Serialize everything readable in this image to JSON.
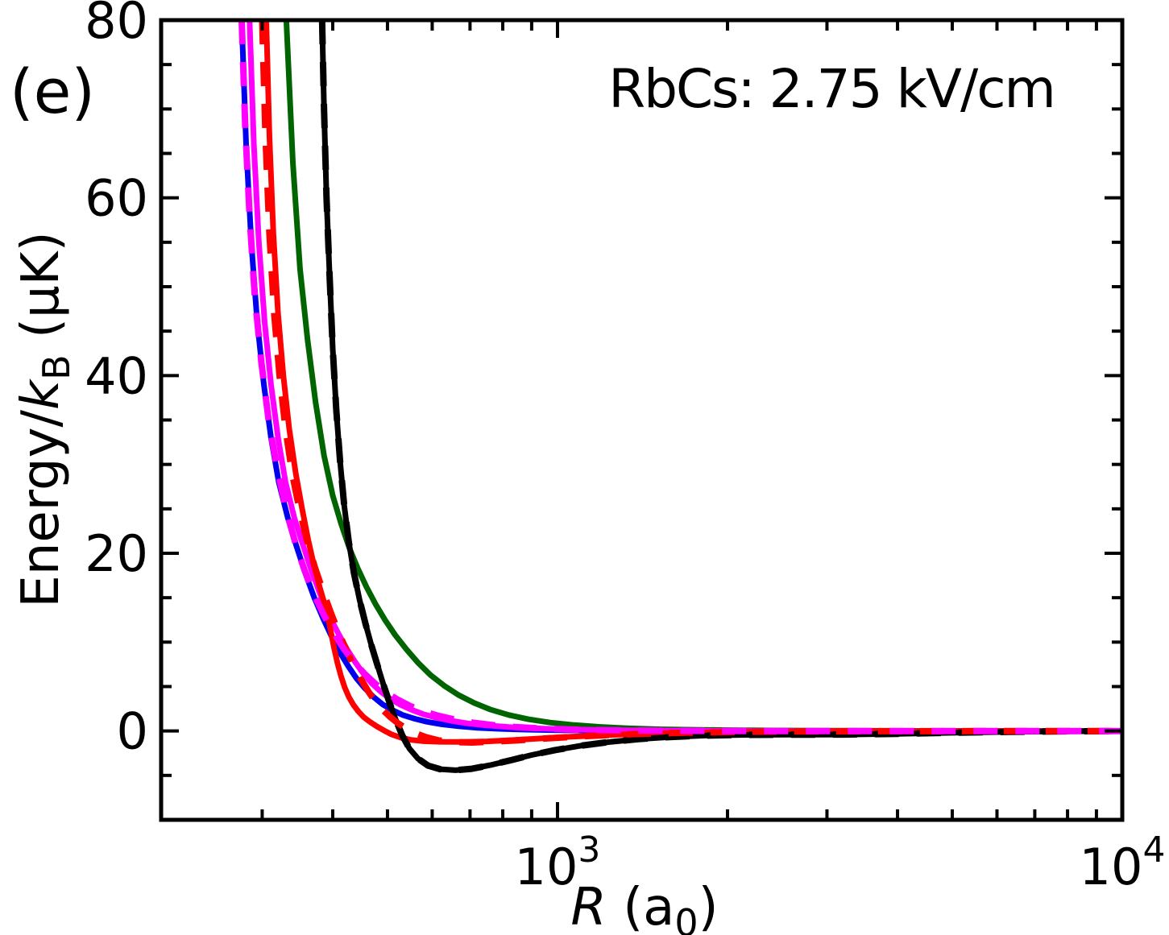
{
  "panel_label": "(e)",
  "annotation": "RbCs: 2.75 kV/cm",
  "axes": {
    "x": {
      "label_r": "R",
      "label_suffix": " (a",
      "label_sub": "0",
      "label_close": ")",
      "scale": "log",
      "min": 198.7,
      "max": 10000,
      "major_ticks": [
        {
          "value": 1000,
          "base": "10",
          "exp": "3"
        },
        {
          "value": 10000,
          "base": "10",
          "exp": "4"
        }
      ],
      "minor_ticks": [
        300,
        400,
        500,
        600,
        700,
        800,
        900,
        2000,
        3000,
        4000,
        5000,
        6000,
        7000,
        8000,
        9000
      ]
    },
    "y": {
      "label_prefix": "Energy/",
      "label_k": "k",
      "label_sub": "B",
      "label_suffix": " (μK)",
      "scale": "linear",
      "min": -10,
      "max": 80,
      "major_ticks": [
        {
          "value": 80,
          "label": "80"
        },
        {
          "value": 60,
          "label": "60"
        },
        {
          "value": 40,
          "label": "40"
        },
        {
          "value": 20,
          "label": "20"
        },
        {
          "value": 0,
          "label": "0"
        }
      ],
      "minor_ticks": [
        75,
        70,
        65,
        55,
        50,
        45,
        35,
        30,
        25,
        15,
        10,
        5,
        -5
      ]
    }
  },
  "chart_data": {
    "type": "line",
    "title": "RbCs: 2.75 kV/cm",
    "xlabel": "R (a0)",
    "ylabel": "Energy/kB (μK)",
    "x_scale": "log",
    "xlim": [
      198.7,
      10000
    ],
    "ylim": [
      -10,
      80
    ],
    "grid": false,
    "legend": "none",
    "colors": {
      "black": "#000000",
      "red": "#ff0000",
      "blue": "#0000ee",
      "magenta": "#ff00ff",
      "green": "#006400"
    },
    "series": [
      {
        "name": "green-solid",
        "color": "#006400",
        "style": "solid",
        "points": [
          [
            331,
            80
          ],
          [
            340,
            64
          ],
          [
            350,
            52
          ],
          [
            361,
            44
          ],
          [
            373,
            37
          ],
          [
            386,
            31
          ],
          [
            400,
            26.5
          ],
          [
            414,
            23.3
          ],
          [
            428,
            20.6
          ],
          [
            443,
            18.3
          ],
          [
            459,
            16.2
          ],
          [
            476,
            14.3
          ],
          [
            495,
            12.5
          ],
          [
            516,
            10.8
          ],
          [
            540,
            9.2
          ],
          [
            566,
            7.7
          ],
          [
            596,
            6.3
          ],
          [
            630,
            5.1
          ],
          [
            668,
            4.05
          ],
          [
            712,
            3.15
          ],
          [
            762,
            2.4
          ],
          [
            820,
            1.8
          ],
          [
            888,
            1.32
          ],
          [
            970,
            0.95
          ],
          [
            1070,
            0.67
          ],
          [
            1190,
            0.46
          ],
          [
            1340,
            0.3
          ],
          [
            1530,
            0.19
          ],
          [
            1780,
            0.12
          ],
          [
            2100,
            0.08
          ],
          [
            2600,
            0.05
          ],
          [
            3300,
            0.03
          ],
          [
            4500,
            0.01
          ],
          [
            6500,
            0
          ],
          [
            10000,
            0
          ]
        ]
      },
      {
        "name": "blue-solid",
        "color": "#0000ee",
        "style": "solid",
        "points": [
          [
            276,
            80
          ],
          [
            281,
            66
          ],
          [
            287,
            55
          ],
          [
            294,
            46
          ],
          [
            302,
            39
          ],
          [
            311,
            33
          ],
          [
            321,
            28
          ],
          [
            333,
            24
          ],
          [
            345,
            20.8
          ],
          [
            358,
            17.7
          ],
          [
            371,
            15
          ],
          [
            385,
            12.6
          ],
          [
            399,
            10.5
          ],
          [
            413,
            8.7
          ],
          [
            427,
            7.2
          ],
          [
            441,
            5.9
          ],
          [
            456,
            4.8
          ],
          [
            472,
            3.85
          ],
          [
            490,
            3
          ],
          [
            510,
            2.35
          ],
          [
            532,
            1.8
          ],
          [
            558,
            1.38
          ],
          [
            588,
            1.03
          ],
          [
            624,
            0.75
          ],
          [
            668,
            0.53
          ],
          [
            722,
            0.36
          ],
          [
            790,
            0.24
          ],
          [
            880,
            0.15
          ],
          [
            1000,
            0.09
          ],
          [
            1160,
            0.05
          ],
          [
            1400,
            0.02
          ],
          [
            1800,
            0.01
          ],
          [
            2500,
            0
          ],
          [
            10000,
            0
          ]
        ]
      },
      {
        "name": "magenta-solid",
        "color": "#ff00ff",
        "style": "solid",
        "points": [
          [
            285,
            80
          ],
          [
            290,
            66
          ],
          [
            296,
            55
          ],
          [
            303,
            46
          ],
          [
            311,
            39
          ],
          [
            320,
            33
          ],
          [
            330,
            28
          ],
          [
            342,
            24
          ],
          [
            354,
            21
          ],
          [
            367,
            18
          ],
          [
            380,
            15.4
          ],
          [
            394,
            13
          ],
          [
            409,
            11
          ],
          [
            424,
            9.2
          ],
          [
            439,
            7.7
          ],
          [
            454,
            6.4
          ],
          [
            470,
            5.3
          ],
          [
            487,
            4.4
          ],
          [
            506,
            3.6
          ],
          [
            527,
            2.95
          ],
          [
            551,
            2.4
          ],
          [
            578,
            1.9
          ],
          [
            610,
            1.5
          ],
          [
            648,
            1.15
          ],
          [
            694,
            0.85
          ],
          [
            750,
            0.62
          ],
          [
            820,
            0.44
          ],
          [
            910,
            0.3
          ],
          [
            1020,
            0.2
          ],
          [
            1160,
            0.12
          ],
          [
            1350,
            0.07
          ],
          [
            1620,
            0.03
          ],
          [
            2000,
            0.01
          ],
          [
            2700,
            0
          ],
          [
            10000,
            0
          ]
        ]
      },
      {
        "name": "red-solid",
        "color": "#ff0000",
        "style": "solid",
        "points": [
          [
            305,
            80
          ],
          [
            309,
            67
          ],
          [
            314,
            56
          ],
          [
            320,
            47
          ],
          [
            327,
            40
          ],
          [
            335,
            34
          ],
          [
            344,
            29
          ],
          [
            353,
            25
          ],
          [
            362,
            21.5
          ],
          [
            371,
            18.5
          ],
          [
            380,
            16
          ],
          [
            389,
            13.8
          ],
          [
            396,
            11.5
          ],
          [
            402,
            9.4
          ],
          [
            408,
            7.6
          ],
          [
            414,
            6.1
          ],
          [
            420,
            4.9
          ],
          [
            427,
            3.85
          ],
          [
            435,
            2.95
          ],
          [
            444,
            2.2
          ],
          [
            454,
            1.55
          ],
          [
            466,
            1
          ],
          [
            479,
            0.5
          ],
          [
            493,
            0.05
          ],
          [
            509,
            -0.4
          ],
          [
            528,
            -0.75
          ],
          [
            550,
            -1
          ],
          [
            580,
            -1.15
          ],
          [
            620,
            -1.22
          ],
          [
            680,
            -1.23
          ],
          [
            750,
            -1.17
          ],
          [
            830,
            -1.03
          ],
          [
            930,
            -0.85
          ],
          [
            1050,
            -0.66
          ],
          [
            1200,
            -0.48
          ],
          [
            1400,
            -0.32
          ],
          [
            1680,
            -0.2
          ],
          [
            2100,
            -0.1
          ],
          [
            2700,
            -0.05
          ],
          [
            3700,
            -0.02
          ],
          [
            5500,
            -0.01
          ],
          [
            10000,
            0
          ]
        ]
      },
      {
        "name": "black-solid",
        "color": "#000000",
        "style": "solid",
        "points": [
          [
            383,
            80
          ],
          [
            386,
            70
          ],
          [
            390,
            60
          ],
          [
            395,
            51
          ],
          [
            400,
            43
          ],
          [
            406,
            36
          ],
          [
            412,
            30.5
          ],
          [
            419,
            25.5
          ],
          [
            427,
            21.3
          ],
          [
            436,
            17.8
          ],
          [
            446,
            14.8
          ],
          [
            457,
            12.1
          ],
          [
            468,
            9.7
          ],
          [
            480,
            7.4
          ],
          [
            492,
            5.2
          ],
          [
            504,
            3.2
          ],
          [
            517,
            1.3
          ],
          [
            531,
            -0.5
          ],
          [
            547,
            -2
          ],
          [
            566,
            -3.1
          ],
          [
            590,
            -3.9
          ],
          [
            620,
            -4.3
          ],
          [
            660,
            -4.42
          ],
          [
            705,
            -4.25
          ],
          [
            760,
            -3.85
          ],
          [
            825,
            -3.3
          ],
          [
            900,
            -2.7
          ],
          [
            990,
            -2.15
          ],
          [
            1100,
            -1.65
          ],
          [
            1230,
            -1.25
          ],
          [
            1390,
            -0.92
          ],
          [
            1580,
            -0.68
          ],
          [
            1820,
            -0.52
          ],
          [
            2150,
            -0.44
          ],
          [
            2600,
            -0.42
          ],
          [
            3200,
            -0.4
          ],
          [
            4000,
            -0.32
          ],
          [
            5000,
            -0.2
          ],
          [
            6300,
            -0.1
          ],
          [
            8000,
            -0.04
          ],
          [
            10000,
            -0.01
          ]
        ]
      },
      {
        "name": "black-dashed",
        "color": "#000000",
        "style": "dashed",
        "ref": "black-solid",
        "points": []
      },
      {
        "name": "red-dashed",
        "color": "#ff0000",
        "style": "dashed",
        "points": [
          [
            300,
            80
          ],
          [
            304,
            67
          ],
          [
            309,
            56
          ],
          [
            315,
            47
          ],
          [
            322,
            40
          ],
          [
            330,
            34
          ],
          [
            339,
            29
          ],
          [
            349,
            25
          ],
          [
            360,
            21.5
          ],
          [
            372,
            18.4
          ],
          [
            385,
            15.6
          ],
          [
            398,
            13.1
          ],
          [
            411,
            10.9
          ],
          [
            424,
            8.9
          ],
          [
            437,
            7.2
          ],
          [
            450,
            5.7
          ],
          [
            463,
            4.4
          ],
          [
            476,
            3.3
          ],
          [
            490,
            2.4
          ],
          [
            505,
            1.6
          ],
          [
            521,
            0.9
          ],
          [
            539,
            0.3
          ],
          [
            560,
            -0.25
          ],
          [
            585,
            -0.7
          ],
          [
            615,
            -1.05
          ],
          [
            655,
            -1.25
          ],
          [
            705,
            -1.3
          ],
          [
            770,
            -1.2
          ],
          [
            850,
            -1.05
          ],
          [
            950,
            -0.85
          ],
          [
            1070,
            -0.65
          ],
          [
            1220,
            -0.47
          ],
          [
            1420,
            -0.31
          ],
          [
            1700,
            -0.19
          ],
          [
            2100,
            -0.1
          ],
          [
            2700,
            -0.05
          ],
          [
            3700,
            -0.02
          ],
          [
            5500,
            -0.01
          ],
          [
            10000,
            0
          ]
        ]
      },
      {
        "name": "magenta-dashed",
        "color": "#ff00ff",
        "style": "dashed",
        "points": [
          [
            276,
            80
          ],
          [
            280,
            68
          ],
          [
            285,
            58
          ],
          [
            291,
            49
          ],
          [
            299,
            41.5
          ],
          [
            308,
            35
          ],
          [
            319,
            29.5
          ],
          [
            331,
            24.8
          ],
          [
            344,
            21
          ],
          [
            357,
            18
          ],
          [
            371,
            15.3
          ],
          [
            386,
            13
          ],
          [
            402,
            11
          ],
          [
            419,
            9.2
          ],
          [
            437,
            7.7
          ],
          [
            456,
            6.4
          ],
          [
            476,
            5.3
          ],
          [
            498,
            4.3
          ],
          [
            522,
            3.5
          ],
          [
            549,
            2.8
          ],
          [
            580,
            2.2
          ],
          [
            616,
            1.7
          ],
          [
            658,
            1.28
          ],
          [
            708,
            0.94
          ],
          [
            768,
            0.66
          ],
          [
            840,
            0.45
          ],
          [
            930,
            0.3
          ],
          [
            1040,
            0.19
          ],
          [
            1180,
            0.11
          ],
          [
            1360,
            0.06
          ],
          [
            1600,
            0.03
          ],
          [
            1950,
            0.01
          ],
          [
            2500,
            0
          ],
          [
            10000,
            0
          ]
        ]
      }
    ]
  }
}
